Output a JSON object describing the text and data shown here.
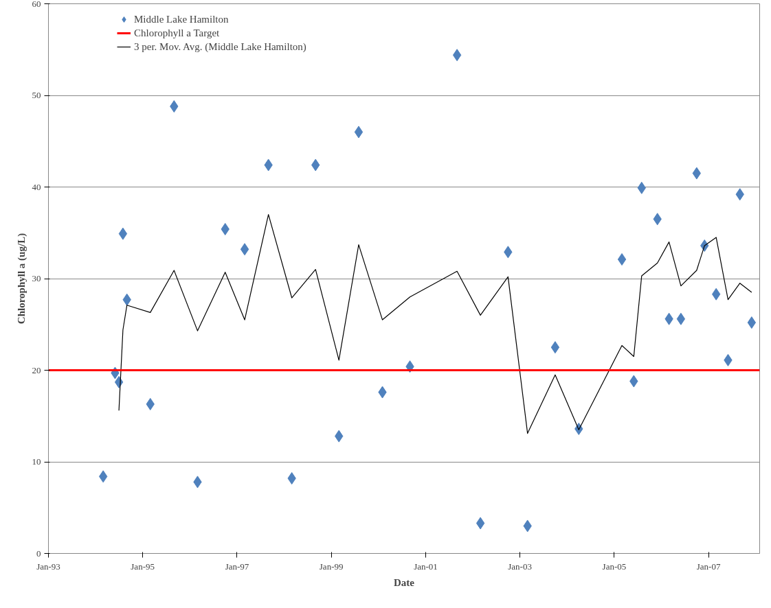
{
  "chart_data": {
    "type": "scatter",
    "xlabel": "Date",
    "ylabel": "Chlorophyll a (ug/L)",
    "xlim": [
      "1993-01",
      "2008-02"
    ],
    "ylim": [
      0,
      60
    ],
    "xticks": [
      {
        "value": "1993-01",
        "label": "Jan-93"
      },
      {
        "value": "1995-01",
        "label": "Jan-95"
      },
      {
        "value": "1997-01",
        "label": "Jan-97"
      },
      {
        "value": "1999-01",
        "label": "Jan-99"
      },
      {
        "value": "2001-01",
        "label": "Jan-01"
      },
      {
        "value": "2003-01",
        "label": "Jan-03"
      },
      {
        "value": "2005-01",
        "label": "Jan-05"
      },
      {
        "value": "2007-01",
        "label": "Jan-07"
      }
    ],
    "yticks": [
      0,
      10,
      20,
      30,
      40,
      50,
      60
    ],
    "grid": "y",
    "legend": "top left",
    "x": [
      "1994-03",
      "1994-06",
      "1994-07",
      "1994-08",
      "1994-09",
      "1995-03",
      "1995-09",
      "1996-03",
      "1996-10",
      "1997-03",
      "1997-09",
      "1998-03",
      "1998-09",
      "1999-03",
      "1999-08",
      "2000-02",
      "2000-09",
      "2001-09",
      "2002-03",
      "2002-10",
      "2003-03",
      "2003-10",
      "2004-04",
      "2005-03",
      "2005-06",
      "2005-08",
      "2005-12",
      "2006-03",
      "2006-06",
      "2006-10",
      "2006-12",
      "2007-03",
      "2007-06",
      "2007-09",
      "2007-12"
    ],
    "series": [
      {
        "name": "Middle Lake Hamilton",
        "marker": "diamond",
        "color": "#4f81bd",
        "values": [
          8.4,
          19.7,
          18.7,
          34.9,
          27.7,
          16.3,
          48.8,
          7.8,
          35.4,
          33.2,
          42.4,
          8.2,
          42.4,
          12.8,
          46.0,
          17.6,
          20.4,
          54.4,
          3.3,
          32.9,
          3.0,
          22.5,
          13.6,
          32.1,
          18.8,
          39.9,
          36.5,
          25.6,
          25.6,
          41.5,
          33.6,
          28.3,
          21.1,
          39.2,
          25.2
        ]
      },
      {
        "name": "3 per. Mov. Avg. (Middle Lake Hamilton)",
        "type": "line",
        "marker": "none",
        "line_style": "solid",
        "color": "#000000",
        "x": [
          "1994-07",
          "1994-08",
          "1994-09",
          "1995-03",
          "1995-09",
          "1996-03",
          "1996-10",
          "1997-03",
          "1997-09",
          "1998-03",
          "1998-09",
          "1999-03",
          "1999-08",
          "2000-02",
          "2000-09",
          "2001-09",
          "2002-03",
          "2002-10",
          "2003-03",
          "2003-10",
          "2004-04",
          "2005-03",
          "2005-06",
          "2005-08",
          "2005-12",
          "2006-03",
          "2006-06",
          "2006-10",
          "2006-12",
          "2007-03",
          "2007-06",
          "2007-09",
          "2007-12"
        ],
        "values": [
          15.6,
          24.4,
          27.1,
          26.3,
          30.9,
          24.3,
          30.7,
          25.5,
          37.0,
          27.9,
          31.0,
          21.1,
          33.7,
          25.5,
          28.0,
          30.8,
          26.0,
          30.2,
          13.1,
          19.5,
          13.5,
          22.7,
          21.5,
          30.3,
          31.7,
          34.0,
          29.2,
          30.9,
          33.6,
          34.5,
          27.7,
          29.5,
          28.5
        ]
      }
    ],
    "ref_lines": [
      {
        "axis": "y",
        "value": 20,
        "label": "Chlorophyll a Target",
        "color": "#ff0000",
        "line_style": "solid"
      }
    ]
  }
}
